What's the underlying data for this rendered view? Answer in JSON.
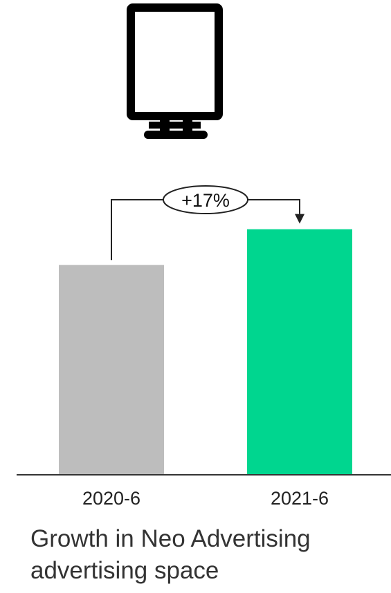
{
  "icon": "digital-signage-monitor-icon",
  "colors": {
    "base_bar": "#bdbdbd",
    "growth_bar": "#00d68f",
    "axis": "#333333",
    "annotation": "#222222",
    "icon": "#000000"
  },
  "chart_data": {
    "type": "bar",
    "title": "Growth in Neo Advertising advertising space",
    "categories": [
      "2020-6",
      "2021-6"
    ],
    "values": [
      100,
      117
    ],
    "ylim": [
      0,
      135
    ],
    "grid": false,
    "annotation": {
      "label": "+17%",
      "from": "2020-6",
      "to": "2021-6"
    }
  }
}
